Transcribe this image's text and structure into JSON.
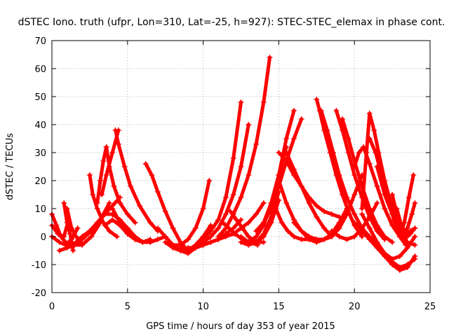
{
  "chart_data": {
    "type": "scatter",
    "title": "dSTEC Iono. truth (ufpr, Lon=310, Lat=-25, h=927): STEC-STEC_elemax in phase cont.",
    "xlabel": "GPS time / hours of day 353 of year 2015",
    "ylabel": "dSTEC  / TECUs",
    "xlim": [
      0,
      25
    ],
    "ylim": [
      -20,
      70
    ],
    "xticks": [
      0,
      5,
      10,
      15,
      20,
      25
    ],
    "yticks": [
      -20,
      -10,
      0,
      10,
      20,
      30,
      40,
      50,
      60,
      70
    ],
    "grid": true,
    "legend": "none",
    "marker": "plus",
    "color": "#ff0000",
    "series": [
      {
        "x": [
          0.0,
          0.3,
          0.6,
          0.9,
          1.2
        ],
        "y": [
          8,
          4,
          0,
          -2,
          -3
        ]
      },
      {
        "x": [
          0.0,
          0.4,
          0.8,
          1.1
        ],
        "y": [
          4,
          1,
          0,
          6
        ]
      },
      {
        "x": [
          0.0,
          0.5,
          0.9,
          1.3,
          1.7
        ],
        "y": [
          0,
          -2,
          -3,
          -1,
          3
        ]
      },
      {
        "x": [
          0.8,
          1.0,
          1.2,
          1.4
        ],
        "y": [
          12,
          5,
          1,
          -5
        ]
      },
      {
        "x": [
          1.0,
          1.3,
          1.6,
          1.9
        ],
        "y": [
          10,
          3,
          0,
          -2
        ]
      },
      {
        "x": [
          1.2,
          1.6,
          2.0,
          2.5,
          3.0,
          3.5,
          4.0,
          4.5
        ],
        "y": [
          -3,
          -2,
          0,
          2,
          5,
          8,
          11,
          14
        ]
      },
      {
        "x": [
          1.5,
          2.0,
          2.6,
          3.2
        ],
        "y": [
          -3,
          -3,
          0,
          5
        ]
      },
      {
        "x": [
          2.0,
          2.6,
          3.2,
          3.8
        ],
        "y": [
          -1,
          2,
          6,
          12
        ]
      },
      {
        "x": [
          2.5,
          2.7,
          3.0,
          3.4,
          3.8,
          4.3
        ],
        "y": [
          22,
          15,
          10,
          5,
          2,
          0
        ]
      },
      {
        "x": [
          3.0,
          3.2,
          3.4,
          3.6
        ],
        "y": [
          12,
          20,
          27,
          32
        ]
      },
      {
        "x": [
          3.3,
          3.6,
          4.0,
          4.4
        ],
        "y": [
          15,
          22,
          30,
          38
        ]
      },
      {
        "x": [
          3.6,
          3.8,
          4.1,
          4.5,
          5.0,
          5.5
        ],
        "y": [
          32,
          25,
          18,
          12,
          8,
          5
        ]
      },
      {
        "x": [
          4.2,
          4.4,
          4.8,
          5.2,
          5.8,
          6.5,
          7.0
        ],
        "y": [
          38,
          33,
          25,
          18,
          11,
          5,
          2
        ]
      },
      {
        "x": [
          3.0,
          3.5,
          4.0,
          4.5,
          5.0
        ],
        "y": [
          5,
          8,
          8,
          6,
          3
        ]
      },
      {
        "x": [
          3.5,
          4.0,
          4.5,
          5.0,
          5.5,
          6.0
        ],
        "y": [
          4,
          6,
          4,
          1,
          -1,
          -2
        ]
      },
      {
        "x": [
          4.0,
          4.5,
          5.0,
          5.5,
          6.0,
          6.5
        ],
        "y": [
          10,
          5,
          1,
          -1,
          -2,
          -1
        ]
      },
      {
        "x": [
          4.5,
          5.0,
          5.5,
          6.0,
          6.5,
          7.0,
          7.5
        ],
        "y": [
          5,
          2,
          -1,
          -2,
          -2,
          -1,
          0
        ]
      },
      {
        "x": [
          5.0,
          5.5,
          6.0,
          6.5,
          7.0
        ],
        "y": [
          3,
          0,
          -2,
          -2,
          -1
        ]
      },
      {
        "x": [
          6.2,
          6.6,
          7.0,
          7.5,
          8.0,
          8.5,
          9.0
        ],
        "y": [
          26,
          22,
          16,
          9,
          3,
          -2,
          -5
        ]
      },
      {
        "x": [
          7.0,
          7.5,
          8.0,
          8.5,
          9.0,
          9.5,
          10.0
        ],
        "y": [
          3,
          0,
          -3,
          -5,
          -6,
          -4,
          -2
        ]
      },
      {
        "x": [
          7.5,
          8.0,
          8.5,
          9.0,
          9.5,
          10.0,
          10.5
        ],
        "y": [
          -2,
          -4,
          -5,
          -5,
          -3,
          0,
          4
        ]
      },
      {
        "x": [
          8.0,
          8.5,
          9.0,
          9.5,
          10.0,
          10.4
        ],
        "y": [
          -3,
          -3,
          -1,
          3,
          10,
          20
        ]
      },
      {
        "x": [
          8.5,
          9.0,
          9.5,
          10.0,
          10.5,
          11.0,
          11.5,
          12.0,
          12.5
        ],
        "y": [
          -4,
          -5,
          -4,
          -3,
          -2,
          -1,
          1,
          3,
          6
        ]
      },
      {
        "x": [
          9.0,
          9.5,
          10.0,
          10.5,
          11.0,
          11.5,
          12.0,
          12.5,
          13.0,
          13.5,
          14.0
        ],
        "y": [
          -4,
          -4,
          -3,
          -2,
          -1,
          0,
          1,
          3,
          5,
          8,
          12
        ]
      },
      {
        "x": [
          9.5,
          10.0,
          10.5,
          11.0,
          11.5,
          12.0,
          12.5,
          13.0
        ],
        "y": [
          -3,
          -2,
          0,
          3,
          8,
          15,
          25,
          40
        ]
      },
      {
        "x": [
          10.0,
          10.5,
          11.0,
          11.5,
          12.0,
          12.5
        ],
        "y": [
          -1,
          2,
          6,
          14,
          28,
          48
        ]
      },
      {
        "x": [
          11.0,
          11.5,
          12.0,
          12.5,
          13.0,
          13.5,
          14.0,
          14.4
        ],
        "y": [
          0,
          3,
          8,
          14,
          22,
          33,
          48,
          64
        ]
      },
      {
        "x": [
          11.3,
          11.7,
          12.1,
          12.6,
          13.1,
          13.6
        ],
        "y": [
          5,
          3,
          1,
          -1,
          -2,
          -3
        ]
      },
      {
        "x": [
          11.8,
          12.2,
          12.6,
          13.0,
          13.5,
          14.0
        ],
        "y": [
          9,
          6,
          3,
          0,
          -2,
          -2
        ]
      },
      {
        "x": [
          12.5,
          13.0,
          13.5,
          14.0,
          14.5,
          15.0
        ],
        "y": [
          -2,
          -3,
          -2,
          1,
          7,
          16
        ]
      },
      {
        "x": [
          12.5,
          13.0,
          13.5,
          14.0,
          14.5,
          15.0
        ],
        "y": [
          0,
          -2,
          -2,
          0,
          5,
          13
        ]
      },
      {
        "x": [
          13.0,
          13.5,
          14.0,
          14.5,
          15.0,
          15.5,
          16.0
        ],
        "y": [
          -2,
          0,
          4,
          12,
          22,
          35,
          45
        ]
      },
      {
        "x": [
          13.5,
          14.0,
          14.5,
          15.0,
          15.5
        ],
        "y": [
          2,
          5,
          12,
          22,
          32
        ]
      },
      {
        "x": [
          14.0,
          14.5,
          15.0,
          15.5,
          16.0,
          16.5
        ],
        "y": [
          5,
          10,
          18,
          27,
          35,
          42
        ]
      },
      {
        "x": [
          15.0,
          15.5,
          16.0,
          16.5,
          17.0,
          17.5,
          18.0,
          18.5,
          19.0
        ],
        "y": [
          30,
          27,
          22,
          18,
          14,
          11,
          9,
          8,
          7
        ]
      },
      {
        "x": [
          15.5,
          16.0,
          16.5,
          17.0,
          17.5,
          18.0,
          18.5
        ],
        "y": [
          30,
          24,
          18,
          12,
          7,
          3,
          0
        ]
      },
      {
        "x": [
          15.0,
          15.5,
          16.0,
          16.5,
          17.0,
          17.5
        ],
        "y": [
          20,
          12,
          6,
          2,
          0,
          -1
        ]
      },
      {
        "x": [
          14.8,
          15.2,
          15.6,
          16.0,
          16.5,
          17.0
        ],
        "y": [
          10,
          5,
          2,
          0,
          -1,
          -1
        ]
      },
      {
        "x": [
          16.0,
          16.5,
          17.0,
          17.5,
          18.0,
          18.5,
          19.0,
          19.5
        ],
        "y": [
          5,
          2,
          -1,
          -2,
          -1,
          1,
          5,
          10
        ]
      },
      {
        "x": [
          16.5,
          17.0,
          17.5,
          18.0,
          18.5,
          19.0,
          19.5,
          20.0,
          20.5
        ],
        "y": [
          2,
          0,
          -1,
          -1,
          0,
          3,
          8,
          15,
          22
        ]
      },
      {
        "x": [
          17.5,
          17.7,
          18.0,
          18.4,
          18.8,
          19.2,
          19.6,
          20.0,
          20.5
        ],
        "y": [
          49,
          45,
          38,
          30,
          22,
          15,
          9,
          4,
          0
        ]
      },
      {
        "x": [
          17.8,
          18.2,
          18.6,
          19.0,
          19.5,
          20.0,
          20.5,
          21.0
        ],
        "y": [
          45,
          38,
          30,
          22,
          14,
          8,
          3,
          0
        ]
      },
      {
        "x": [
          18.8,
          19.2,
          19.6,
          20.0,
          20.5,
          21.0,
          21.5,
          22.0
        ],
        "y": [
          45,
          38,
          30,
          22,
          14,
          7,
          2,
          -1
        ]
      },
      {
        "x": [
          19.2,
          19.6,
          20.0,
          20.5,
          21.0,
          21.5,
          22.0,
          22.5
        ],
        "y": [
          42,
          35,
          27,
          18,
          10,
          4,
          0,
          -2
        ]
      },
      {
        "x": [
          18.5,
          19.0,
          19.5,
          20.0,
          20.5,
          21.0,
          21.5
        ],
        "y": [
          2,
          0,
          -1,
          0,
          3,
          7,
          12
        ]
      },
      {
        "x": [
          20.0,
          20.3,
          20.6,
          21.0,
          21.5,
          22.0,
          22.5,
          23.0
        ],
        "y": [
          25,
          30,
          32,
          26,
          18,
          10,
          4,
          0
        ]
      },
      {
        "x": [
          20.5,
          20.8,
          21.0,
          21.3,
          21.6,
          22.0,
          22.5,
          23.0,
          23.5
        ],
        "y": [
          10,
          30,
          44,
          38,
          30,
          20,
          10,
          3,
          0
        ]
      },
      {
        "x": [
          21.0,
          21.4,
          21.8,
          22.2,
          22.6,
          23.0,
          23.4
        ],
        "y": [
          35,
          30,
          22,
          14,
          6,
          0,
          -3
        ]
      },
      {
        "x": [
          21.5,
          22.0,
          22.5,
          23.0,
          23.5,
          24.0
        ],
        "y": [
          25,
          15,
          8,
          2,
          -2,
          -3
        ]
      },
      {
        "x": [
          20.0,
          20.5,
          21.0,
          21.5,
          22.0,
          22.5,
          23.0,
          23.5,
          24.0
        ],
        "y": [
          5,
          2,
          -1,
          -4,
          -7,
          -10,
          -12,
          -11,
          -7
        ]
      },
      {
        "x": [
          20.5,
          21.0,
          21.5,
          22.0,
          22.5,
          23.0,
          23.5,
          24.0
        ],
        "y": [
          8,
          3,
          -2,
          -6,
          -9,
          -11,
          -10,
          -8
        ]
      },
      {
        "x": [
          21.0,
          21.5,
          22.0,
          22.5,
          23.0,
          23.5,
          24.0
        ],
        "y": [
          0,
          -3,
          -6,
          -8,
          -7,
          -4,
          0
        ]
      },
      {
        "x": [
          22.5,
          22.8,
          23.1,
          23.4,
          23.7,
          24.0
        ],
        "y": [
          15,
          8,
          3,
          0,
          1,
          3
        ]
      },
      {
        "x": [
          22.8,
          23.1,
          23.4,
          23.7,
          24.0
        ],
        "y": [
          10,
          4,
          1,
          2,
          3
        ]
      },
      {
        "x": [
          23.0,
          23.3,
          23.6,
          23.9
        ],
        "y": [
          0,
          5,
          14,
          22
        ]
      },
      {
        "x": [
          23.2,
          23.5,
          23.8,
          24.0
        ],
        "y": [
          -1,
          3,
          8,
          12
        ]
      },
      {
        "x": [
          0.5,
          1.0,
          1.5,
          2.0,
          2.5,
          3.0
        ],
        "y": [
          -5,
          -4,
          -3,
          -1,
          2,
          4
        ]
      }
    ]
  }
}
